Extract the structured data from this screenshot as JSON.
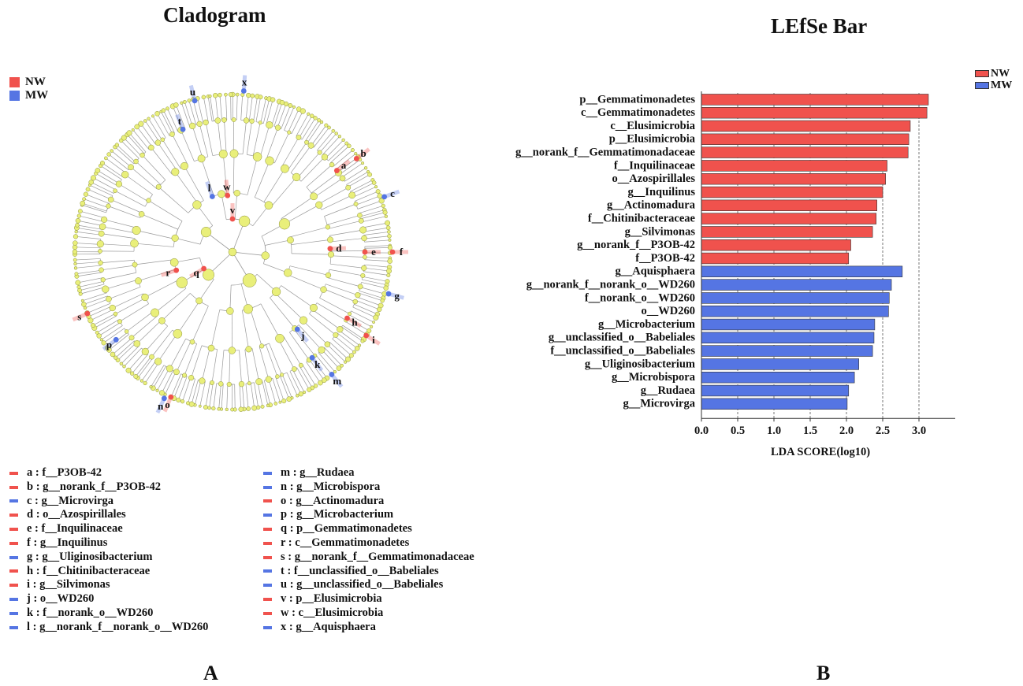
{
  "titles": {
    "cladogram": "Cladogram",
    "lefse": "LEfSe Bar"
  },
  "panel_labels": {
    "a": "A",
    "b": "B"
  },
  "colors": {
    "NW": "#f0524d",
    "MW": "#5575e3",
    "node": "#e9ef7a",
    "branch": "#9a9a9a"
  },
  "groups": [
    {
      "name": "NW",
      "color": "#f0524d"
    },
    {
      "name": "MW",
      "color": "#5575e3"
    }
  ],
  "cladogram_legend": [
    {
      "key": "a",
      "text": "a : f__P3OB-42",
      "group": "NW"
    },
    {
      "key": "b",
      "text": "b : g__norank_f__P3OB-42",
      "group": "NW"
    },
    {
      "key": "c",
      "text": "c : g__Microvirga",
      "group": "MW"
    },
    {
      "key": "d",
      "text": "d : o__Azospirillales",
      "group": "NW"
    },
    {
      "key": "e",
      "text": "e : f__Inquilinaceae",
      "group": "NW"
    },
    {
      "key": "f",
      "text": "f : g__Inquilinus",
      "group": "NW"
    },
    {
      "key": "g",
      "text": "g : g__Uliginosibacterium",
      "group": "MW"
    },
    {
      "key": "h",
      "text": "h : f__Chitinibacteraceae",
      "group": "NW"
    },
    {
      "key": "i",
      "text": "i : g__Silvimonas",
      "group": "NW"
    },
    {
      "key": "j",
      "text": "j : o__WD260",
      "group": "MW"
    },
    {
      "key": "k",
      "text": "k : f__norank_o__WD260",
      "group": "MW"
    },
    {
      "key": "l",
      "text": "l : g__norank_f__norank_o__WD260",
      "group": "MW"
    },
    {
      "key": "m",
      "text": "m : g__Rudaea",
      "group": "MW"
    },
    {
      "key": "n",
      "text": "n : g__Microbispora",
      "group": "MW"
    },
    {
      "key": "o",
      "text": "o : g__Actinomadura",
      "group": "NW"
    },
    {
      "key": "p",
      "text": "p : g__Microbacterium",
      "group": "MW"
    },
    {
      "key": "q",
      "text": "q : p__Gemmatimonadetes",
      "group": "NW"
    },
    {
      "key": "r",
      "text": "r : c__Gemmatimonadetes",
      "group": "NW"
    },
    {
      "key": "s",
      "text": "s : g__norank_f__Gemmatimonadaceae",
      "group": "NW"
    },
    {
      "key": "t",
      "text": "t : f__unclassified_o__Babeliales",
      "group": "MW"
    },
    {
      "key": "u",
      "text": "u : g__unclassified_o__Babeliales",
      "group": "MW"
    },
    {
      "key": "v",
      "text": "v : p__Elusimicrobia",
      "group": "NW"
    },
    {
      "key": "w",
      "text": "w : c__Elusimicrobia",
      "group": "NW"
    },
    {
      "key": "x",
      "text": "x : g__Aquisphaera",
      "group": "MW"
    }
  ],
  "chart_data": [
    {
      "type": "cladogram",
      "title": "Cladogram",
      "legend": [
        "NW",
        "MW"
      ],
      "legend_position": "top-left",
      "highlighted_nodes": [
        {
          "label": "a",
          "group": "NW"
        },
        {
          "label": "b",
          "group": "NW"
        },
        {
          "label": "c",
          "group": "MW"
        },
        {
          "label": "d",
          "group": "NW"
        },
        {
          "label": "e",
          "group": "NW"
        },
        {
          "label": "f",
          "group": "NW"
        },
        {
          "label": "g",
          "group": "MW"
        },
        {
          "label": "h",
          "group": "NW"
        },
        {
          "label": "i",
          "group": "NW"
        },
        {
          "label": "j",
          "group": "MW"
        },
        {
          "label": "k",
          "group": "MW"
        },
        {
          "label": "l",
          "group": "MW"
        },
        {
          "label": "m",
          "group": "MW"
        },
        {
          "label": "n",
          "group": "MW"
        },
        {
          "label": "o",
          "group": "NW"
        },
        {
          "label": "p",
          "group": "MW"
        },
        {
          "label": "q",
          "group": "NW"
        },
        {
          "label": "r",
          "group": "NW"
        },
        {
          "label": "s",
          "group": "NW"
        },
        {
          "label": "t",
          "group": "MW"
        },
        {
          "label": "u",
          "group": "MW"
        },
        {
          "label": "v",
          "group": "NW"
        },
        {
          "label": "w",
          "group": "NW"
        },
        {
          "label": "x",
          "group": "MW"
        }
      ]
    },
    {
      "type": "bar",
      "orientation": "horizontal",
      "title": "LEfSe Bar",
      "xlabel": "LDA SCORE(log10)",
      "ylabel": "",
      "xlim": [
        0,
        3.5
      ],
      "xticks": [
        "0.0",
        "0.5",
        "1.0",
        "1.5",
        "2.0",
        "2.5",
        "3.0"
      ],
      "grid": "vertical dashed",
      "legend": [
        "NW",
        "MW"
      ],
      "legend_position": "top-right",
      "bars": [
        {
          "label": "p__Gemmatimonadetes",
          "value": 3.13,
          "group": "NW"
        },
        {
          "label": "c__Gemmatimonadetes",
          "value": 3.11,
          "group": "NW"
        },
        {
          "label": "c__Elusimicrobia",
          "value": 2.88,
          "group": "NW"
        },
        {
          "label": "p__Elusimicrobia",
          "value": 2.86,
          "group": "NW"
        },
        {
          "label": "g__norank_f__Gemmatimonadaceae",
          "value": 2.85,
          "group": "NW"
        },
        {
          "label": "f__Inquilinaceae",
          "value": 2.56,
          "group": "NW"
        },
        {
          "label": "o__Azospirillales",
          "value": 2.54,
          "group": "NW"
        },
        {
          "label": "g__Inquilinus",
          "value": 2.5,
          "group": "NW"
        },
        {
          "label": "g__Actinomadura",
          "value": 2.42,
          "group": "NW"
        },
        {
          "label": "f__Chitinibacteraceae",
          "value": 2.41,
          "group": "NW"
        },
        {
          "label": "g__Silvimonas",
          "value": 2.36,
          "group": "NW"
        },
        {
          "label": "g__norank_f__P3OB-42",
          "value": 2.06,
          "group": "NW"
        },
        {
          "label": "f__P3OB-42",
          "value": 2.03,
          "group": "NW"
        },
        {
          "label": "g__Aquisphaera",
          "value": 2.77,
          "group": "MW"
        },
        {
          "label": "g__norank_f__norank_o__WD260",
          "value": 2.62,
          "group": "MW"
        },
        {
          "label": "f__norank_o__WD260",
          "value": 2.59,
          "group": "MW"
        },
        {
          "label": "o__WD260",
          "value": 2.58,
          "group": "MW"
        },
        {
          "label": "g__Microbacterium",
          "value": 2.39,
          "group": "MW"
        },
        {
          "label": "g__unclassified_o__Babeliales",
          "value": 2.38,
          "group": "MW"
        },
        {
          "label": "f__unclassified_o__Babeliales",
          "value": 2.36,
          "group": "MW"
        },
        {
          "label": "g__Uliginosibacterium",
          "value": 2.17,
          "group": "MW"
        },
        {
          "label": "g__Microbispora",
          "value": 2.11,
          "group": "MW"
        },
        {
          "label": "g__Rudaea",
          "value": 2.03,
          "group": "MW"
        },
        {
          "label": "g__Microvirga",
          "value": 2.01,
          "group": "MW"
        }
      ]
    }
  ]
}
